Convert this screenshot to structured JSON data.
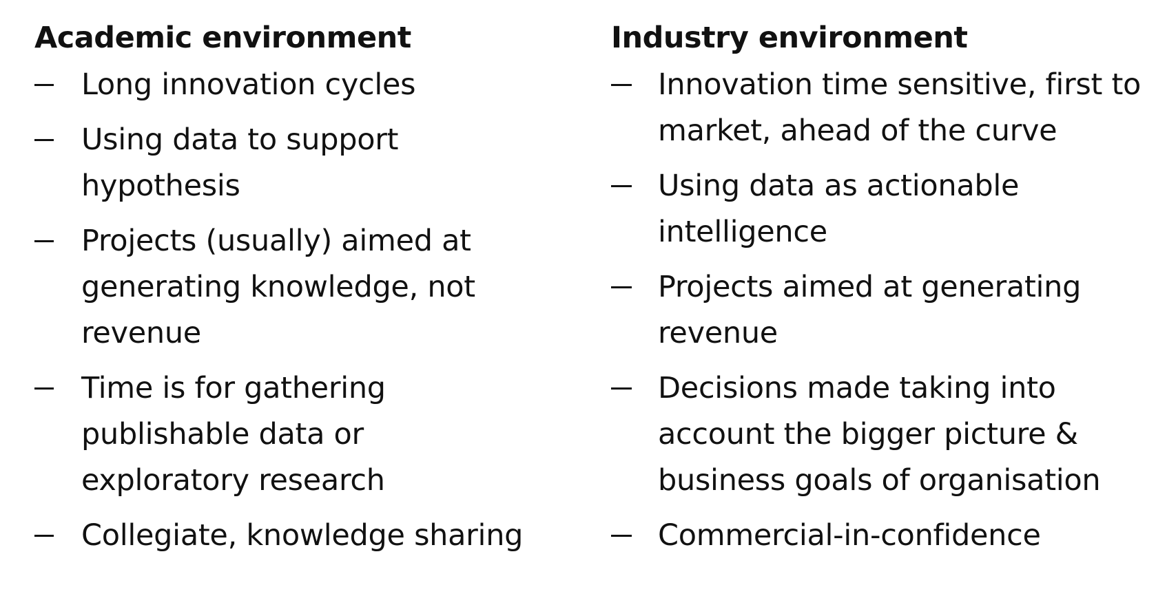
{
  "academic": {
    "heading": "Academic environment",
    "items": [
      {
        "lines": [
          "Long innovation cycles"
        ]
      },
      {
        "lines": [
          "Using data to support",
          "hypothesis"
        ]
      },
      {
        "lines": [
          "Projects (usually) aimed at",
          "generating knowledge, not",
          "revenue"
        ]
      },
      {
        "lines": [
          "Time is for gathering",
          "publishable data or",
          "exploratory research"
        ]
      },
      {
        "lines": [
          "Collegiate, knowledge sharing"
        ]
      }
    ]
  },
  "industry": {
    "heading": "Industry environment",
    "items": [
      {
        "lines": [
          "Innovation time sensitive, first to",
          "market, ahead of the curve"
        ]
      },
      {
        "lines": [
          "Using data as actionable",
          "intelligence"
        ]
      },
      {
        "lines": [
          "Projects aimed at generating",
          "revenue"
        ]
      },
      {
        "lines": [
          "Decisions made taking into",
          "account the bigger picture &",
          "business goals of organisation"
        ]
      },
      {
        "lines": [
          "Commercial-in-confidence"
        ]
      }
    ]
  },
  "bullet_symbol": "dash"
}
